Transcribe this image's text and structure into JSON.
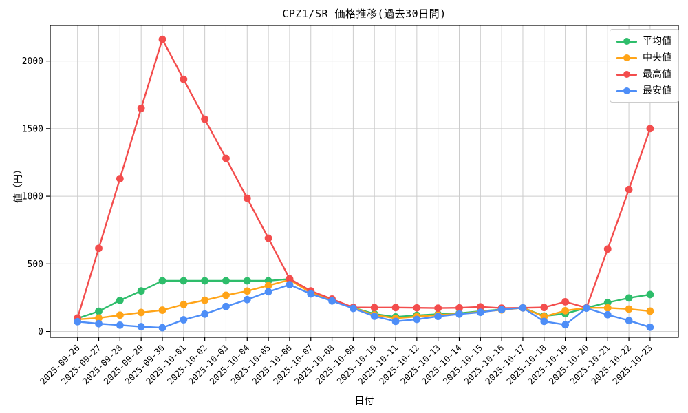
{
  "chart_data": {
    "type": "line",
    "title": "CPZ1/SR 価格推移(過去30日間)",
    "xlabel": "日付",
    "ylabel": "値（円）",
    "x_tick_rotation": 45,
    "yticks": [
      0,
      500,
      1000,
      1500,
      2000
    ],
    "ylim": [
      -45,
      2265
    ],
    "grid": true,
    "legend_position": "upper right",
    "categories": [
      "2025-09-26",
      "2025-09-27",
      "2025-09-28",
      "2025-09-29",
      "2025-09-30",
      "2025-10-01",
      "2025-10-02",
      "2025-10-03",
      "2025-10-04",
      "2025-10-05",
      "2025-10-06",
      "2025-10-07",
      "2025-10-08",
      "2025-10-09",
      "2025-10-10",
      "2025-10-11",
      "2025-10-12",
      "2025-10-13",
      "2025-10-14",
      "2025-10-15",
      "2025-10-16",
      "2025-10-17",
      "2025-10-18",
      "2025-10-19",
      "2025-10-20",
      "2025-10-21",
      "2025-10-22",
      "2025-10-23"
    ],
    "series": [
      {
        "key": "average",
        "name": "平均値",
        "color": "#2ebd6b",
        "values": [
          97,
          150,
          230,
          300,
          375,
          375,
          375,
          375,
          375,
          375,
          388,
          295,
          235,
          176,
          130,
          108,
          120,
          128,
          135,
          150,
          163,
          175,
          115,
          132,
          175,
          214,
          248,
          273
        ]
      },
      {
        "key": "median",
        "name": "中央値",
        "color": "#ffa418",
        "values": [
          90,
          100,
          121,
          141,
          158,
          200,
          231,
          268,
          299,
          340,
          382,
          287,
          232,
          174,
          122,
          98,
          110,
          122,
          130,
          146,
          160,
          175,
          110,
          154,
          175,
          175,
          166,
          151
        ]
      },
      {
        "key": "max",
        "name": "最高値",
        "color": "#f34d4d",
        "values": [
          100,
          615,
          1130,
          1650,
          2160,
          1865,
          1570,
          1280,
          985,
          690,
          390,
          300,
          240,
          178,
          177,
          177,
          175,
          173,
          175,
          182,
          173,
          175,
          178,
          220,
          175,
          610,
          1050,
          1500
        ]
      },
      {
        "key": "min",
        "name": "最安値",
        "color": "#4e8ef7",
        "values": [
          73,
          58,
          47,
          36,
          28,
          87,
          129,
          185,
          236,
          294,
          346,
          278,
          226,
          171,
          113,
          75,
          90,
          112,
          129,
          142,
          163,
          175,
          75,
          50,
          173,
          124,
          81,
          32
        ]
      }
    ]
  }
}
